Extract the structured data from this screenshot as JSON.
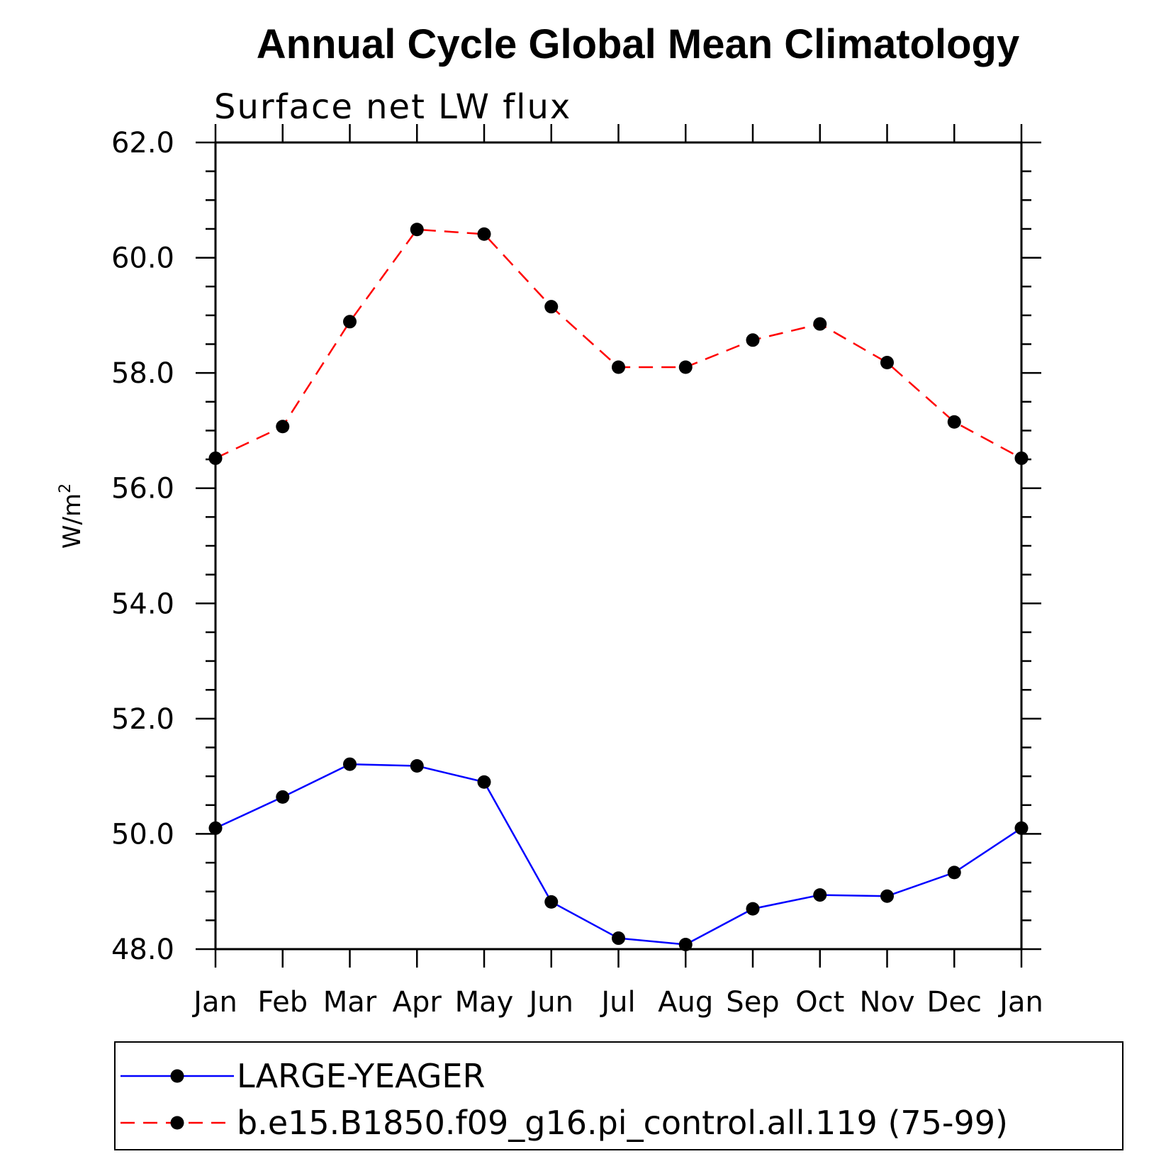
{
  "chart_data": {
    "type": "line",
    "title": "Annual Cycle Global Mean Climatology",
    "subtitle": "Surface net LW flux",
    "ylabel": "W/m",
    "ylabel_superscript": "2",
    "ylim": [
      48.0,
      62.0
    ],
    "yticks": [
      "62.0",
      "60.0",
      "58.0",
      "56.0",
      "54.0",
      "52.0",
      "50.0",
      "48.0"
    ],
    "ytick_values": [
      62,
      60,
      58,
      56,
      54,
      52,
      50,
      48
    ],
    "categories": [
      "Jan",
      "Feb",
      "Mar",
      "Apr",
      "May",
      "Jun",
      "Jul",
      "Aug",
      "Sep",
      "Oct",
      "Nov",
      "Dec",
      "Jan"
    ],
    "series": [
      {
        "name": "LARGE-YEAGER",
        "color": "#0000ff",
        "dashed": false,
        "values": [
          50.1,
          50.64,
          51.21,
          51.18,
          50.9,
          48.82,
          48.19,
          48.08,
          48.7,
          48.94,
          48.92,
          49.33,
          50.1
        ]
      },
      {
        "name": "b.e15.B1850.f09_g16.pi_control.all.119 (75-99)",
        "color": "#ff0000",
        "dashed": true,
        "values": [
          56.52,
          57.07,
          58.89,
          60.49,
          60.41,
          59.15,
          58.1,
          58.1,
          58.57,
          58.85,
          58.18,
          57.15,
          56.52
        ]
      }
    ],
    "legend_position": "bottom"
  }
}
